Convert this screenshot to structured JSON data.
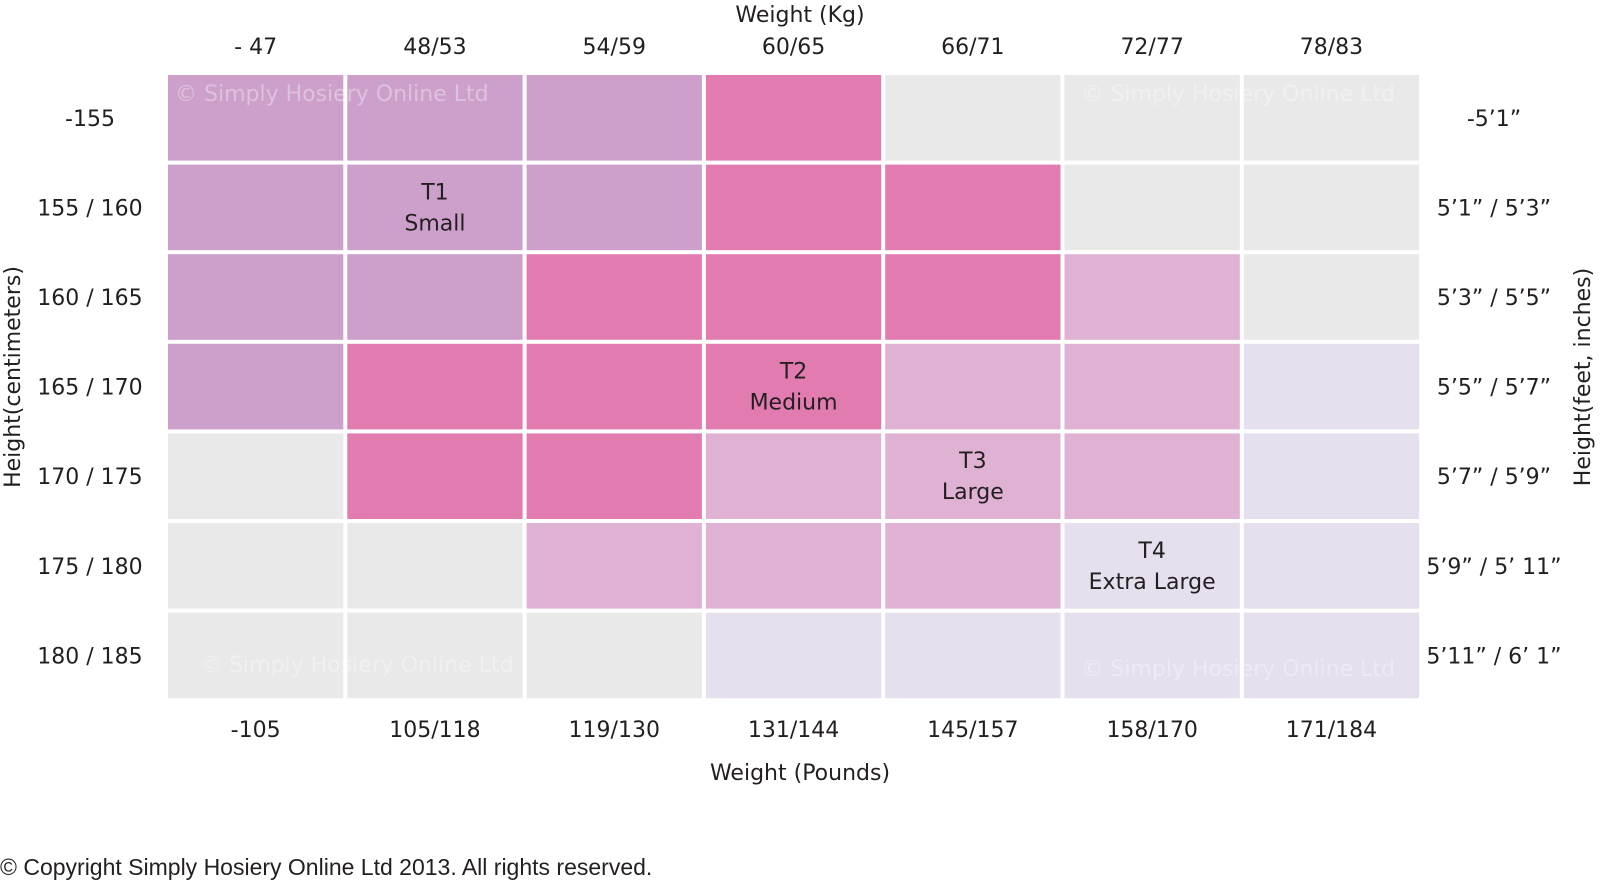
{
  "chart_data": {
    "type": "heatmap",
    "title": "",
    "x_top_label": "Weight (Kg)",
    "x_bottom_label": "Weight (Pounds)",
    "y_left_label": "Height(centimeters)",
    "y_right_label": "Height(feet, inches)",
    "x_top_ticks": [
      "- 47",
      "48/53",
      "54/59",
      "60/65",
      "66/71",
      "72/77",
      "78/83"
    ],
    "x_bottom_ticks": [
      "-105",
      "105/118",
      "119/130",
      "131/144",
      "145/157",
      "158/170",
      "171/184"
    ],
    "y_left_ticks": [
      "-155",
      "155 / 160",
      "160 / 165",
      "165 / 170",
      "170 / 175",
      "175 / 180",
      "180 / 185"
    ],
    "y_right_ticks": [
      "-5’1”",
      "5’1” / 5’3”",
      "5’3” / 5’5”",
      "5’5” / 5’7”",
      "5’7” / 5’9”",
      "5’9” / 5’ 11”",
      "5’11” / 6’ 1”"
    ],
    "size_colors": {
      "none": "#e8e9e8",
      "T1": "#cda0cb",
      "T2": "#e27bb0",
      "T3": "#dfb2d3",
      "T4": "#e6dfed"
    },
    "cells": [
      [
        "T1",
        "T1",
        "T1",
        "T2",
        "none",
        "none",
        "none"
      ],
      [
        "T1",
        "T1",
        "T1",
        "T2",
        "T2",
        "none",
        "none"
      ],
      [
        "T1",
        "T1",
        "T2",
        "T2",
        "T2",
        "T3",
        "none"
      ],
      [
        "T1",
        "T2",
        "T2",
        "T2",
        "T3",
        "T3",
        "T4"
      ],
      [
        "none",
        "T2",
        "T2",
        "T3",
        "T3",
        "T3",
        "T4"
      ],
      [
        "none",
        "none",
        "T3",
        "T3",
        "T3",
        "T4",
        "T4"
      ],
      [
        "none",
        "none",
        "none",
        "T4",
        "T4",
        "T4",
        "T4"
      ]
    ],
    "size_labels": [
      {
        "size": "T1",
        "code": "T1",
        "name": "Small",
        "row": 1,
        "col": 1
      },
      {
        "size": "T2",
        "code": "T2",
        "name": "Medium",
        "row": 3,
        "col": 3
      },
      {
        "size": "T3",
        "code": "T3",
        "name": "Large",
        "row": 4,
        "col": 4
      },
      {
        "size": "T4",
        "code": "T4",
        "name": "Extra Large",
        "row": 5,
        "col": 5
      }
    ],
    "watermark": "© Simply Hosiery Online Ltd"
  },
  "footer": {
    "copyright": "© Copyright Simply Hosiery Online Ltd 2013. All rights reserved."
  }
}
